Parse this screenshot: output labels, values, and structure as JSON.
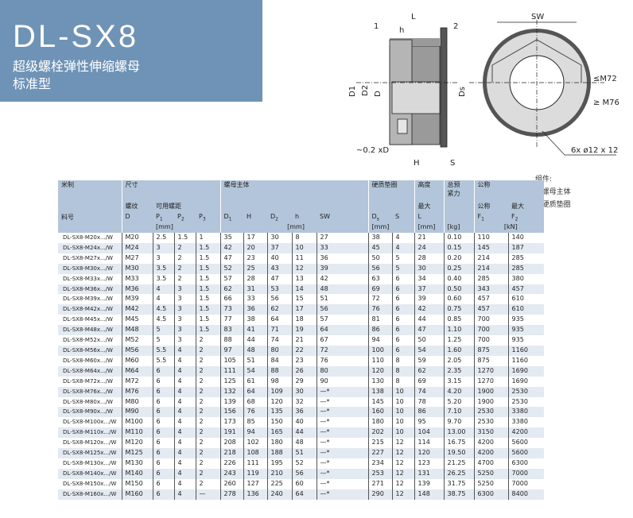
{
  "header": {
    "title": "DL-SX8",
    "subtitle_line1": "超级螺栓弹性伸缩螺母",
    "subtitle_line2": "标准型"
  },
  "diagram": {
    "labels": {
      "L": "L",
      "h": "h",
      "part1": "1",
      "part2": "2",
      "D1": "D1",
      "D2": "D2",
      "D": "D",
      "Ds": "Ds",
      "chamfer": "~0.2 xD",
      "H": "H",
      "S": "S",
      "SW": "SW",
      "le_m72": "≤M72",
      "ge_m76": "≥ M76",
      "holes": "6x  ø12 x 12"
    }
  },
  "components": {
    "title": "组件:",
    "items": [
      "1 螺母主体",
      "2 硬质垫圈"
    ]
  },
  "table": {
    "groups": {
      "metric": "米制",
      "size": "尺寸",
      "body": "螺母主体",
      "washer": "硬质垫圈",
      "height": "高度",
      "preload": "总预",
      "preload2": "紧力",
      "nominal": "公称"
    },
    "sub": {
      "thread": "螺纹",
      "pitch": "可用螺距",
      "max": "最大",
      "nominal": "公称",
      "max2": "最大"
    },
    "cols": {
      "part": "料号",
      "D": "D",
      "P1": "P",
      "P2": "P",
      "P3": "P",
      "D1": "D",
      "H": "H",
      "D2": "D",
      "h": "h",
      "SW": "SW",
      "Ds": "D",
      "S": "S",
      "L": "L",
      "F1": "F",
      "F2": "F"
    },
    "units": {
      "mm1": "[mm]",
      "mm2": "[mm]",
      "mm3": "[mm]",
      "mm4": "[mm]",
      "kg": "[kg]",
      "kN": "[kN]"
    },
    "rows": [
      [
        "DL-SX8-M20x.../W",
        "M20",
        "2.5",
        "1.5",
        "1",
        "35",
        "17",
        "30",
        "8",
        "27",
        "38",
        "4",
        "21",
        "0.10",
        "110",
        "140"
      ],
      [
        "DL-SX8-M24x.../W",
        "M24",
        "3",
        "2",
        "1.5",
        "42",
        "20",
        "37",
        "10",
        "33",
        "45",
        "4",
        "24",
        "0.15",
        "145",
        "187"
      ],
      [
        "DL-SX8-M27x.../W",
        "M27",
        "3",
        "2",
        "1.5",
        "47",
        "23",
        "40",
        "11",
        "36",
        "50",
        "5",
        "28",
        "0.20",
        "214",
        "285"
      ],
      [
        "DL-SX8-M30x.../W",
        "M30",
        "3.5",
        "2",
        "1.5",
        "52",
        "25",
        "43",
        "12",
        "39",
        "56",
        "5",
        "30",
        "0.25",
        "214",
        "285"
      ],
      [
        "DL-SX8-M33x.../W",
        "M33",
        "3.5",
        "2",
        "1.5",
        "57",
        "28",
        "47",
        "13",
        "42",
        "63",
        "6",
        "34",
        "0.40",
        "285",
        "380"
      ],
      [
        "DL-SX8-M36x.../W",
        "M36",
        "4",
        "3",
        "1.5",
        "62",
        "31",
        "53",
        "14",
        "48",
        "69",
        "6",
        "37",
        "0.50",
        "343",
        "457"
      ],
      [
        "DL-SX8-M39x.../W",
        "M39",
        "4",
        "3",
        "1.5",
        "66",
        "33",
        "56",
        "15",
        "51",
        "72",
        "6",
        "39",
        "0.60",
        "457",
        "610"
      ],
      [
        "DL-SX8-M42x.../W",
        "M42",
        "4.5",
        "3",
        "1.5",
        "73",
        "36",
        "62",
        "17",
        "56",
        "76",
        "6",
        "42",
        "0.75",
        "457",
        "610"
      ],
      [
        "DL-SX8-M45x.../W",
        "M45",
        "4.5",
        "3",
        "1.5",
        "77",
        "38",
        "64",
        "18",
        "57",
        "81",
        "6",
        "44",
        "0.85",
        "700",
        "935"
      ],
      [
        "DL-SX8-M48x.../W",
        "M48",
        "5",
        "3",
        "1.5",
        "83",
        "41",
        "71",
        "19",
        "64",
        "86",
        "6",
        "47",
        "1.10",
        "700",
        "935"
      ],
      [
        "DL-SX8-M52x.../W",
        "M52",
        "5",
        "3",
        "2",
        "88",
        "44",
        "74",
        "21",
        "67",
        "94",
        "6",
        "50",
        "1.25",
        "700",
        "935"
      ],
      [
        "DL-SX8-M56x.../W",
        "M56",
        "5.5",
        "4",
        "2",
        "97",
        "48",
        "80",
        "22",
        "72",
        "100",
        "6",
        "54",
        "1.60",
        "875",
        "1160"
      ],
      [
        "DL-SX8-M60x.../W",
        "M60",
        "5.5",
        "4",
        "2",
        "105",
        "51",
        "84",
        "23",
        "76",
        "110",
        "8",
        "59",
        "2.05",
        "875",
        "1160"
      ],
      [
        "DL-SX8-M64x.../W",
        "M64",
        "6",
        "4",
        "2",
        "111",
        "54",
        "88",
        "26",
        "80",
        "120",
        "8",
        "62",
        "2.35",
        "1270",
        "1690"
      ],
      [
        "DL-SX8-M72x.../W",
        "M72",
        "6",
        "4",
        "2",
        "125",
        "61",
        "98",
        "29",
        "90",
        "130",
        "8",
        "69",
        "3.15",
        "1270",
        "1690"
      ],
      [
        "DL-SX8-M76x.../W",
        "M76",
        "6",
        "4",
        "2",
        "132",
        "64",
        "109",
        "30",
        "—*",
        "138",
        "10",
        "74",
        "4.20",
        "1900",
        "2530"
      ],
      [
        "DL-SX8-M80x.../W",
        "M80",
        "6",
        "4",
        "2",
        "139",
        "68",
        "120",
        "32",
        "—*",
        "145",
        "10",
        "78",
        "5.20",
        "1900",
        "2530"
      ],
      [
        "DL-SX8-M90x.../W",
        "M90",
        "6",
        "4",
        "2",
        "156",
        "76",
        "135",
        "36",
        "—*",
        "160",
        "10",
        "86",
        "7.10",
        "2530",
        "3380"
      ],
      [
        "DL-SX8-M100x.../W",
        "M100",
        "6",
        "4",
        "2",
        "173",
        "85",
        "150",
        "40",
        "—*",
        "180",
        "10",
        "95",
        "9.70",
        "2530",
        "3380"
      ],
      [
        "DL-SX8-M110x.../W",
        "M110",
        "6",
        "4",
        "2",
        "191",
        "94",
        "165",
        "44",
        "—*",
        "202",
        "10",
        "104",
        "13.00",
        "3150",
        "4200"
      ],
      [
        "DL-SX8-M120x.../W",
        "M120",
        "6",
        "4",
        "2",
        "208",
        "102",
        "180",
        "48",
        "—*",
        "215",
        "12",
        "114",
        "16.75",
        "4200",
        "5600"
      ],
      [
        "DL-SX8-M125x.../W",
        "M125",
        "6",
        "4",
        "2",
        "218",
        "108",
        "188",
        "51",
        "—*",
        "227",
        "12",
        "120",
        "19.50",
        "4200",
        "5600"
      ],
      [
        "DL-SX8-M130x.../W",
        "M130",
        "6",
        "4",
        "2",
        "226",
        "111",
        "195",
        "52",
        "—*",
        "234",
        "12",
        "123",
        "21.25",
        "4700",
        "6300"
      ],
      [
        "DL-SX8-M140x.../W",
        "M140",
        "6",
        "4",
        "2",
        "243",
        "119",
        "210",
        "56",
        "—*",
        "253",
        "12",
        "131",
        "26.25",
        "5250",
        "7000"
      ],
      [
        "DL-SX8-M150x.../W",
        "M150",
        "6",
        "4",
        "2",
        "260",
        "127",
        "225",
        "60",
        "—*",
        "271",
        "12",
        "139",
        "31.75",
        "5250",
        "7000"
      ],
      [
        "DL-SX8-M160x.../W",
        "M160",
        "6",
        "4",
        "—",
        "278",
        "136",
        "240",
        "64",
        "—*",
        "290",
        "12",
        "148",
        "38.75",
        "6300",
        "8400"
      ]
    ]
  },
  "colors": {
    "title_bg": "#6f93b6",
    "header_bg": "#b3c5da",
    "row_alt": "#e4eaf2"
  }
}
